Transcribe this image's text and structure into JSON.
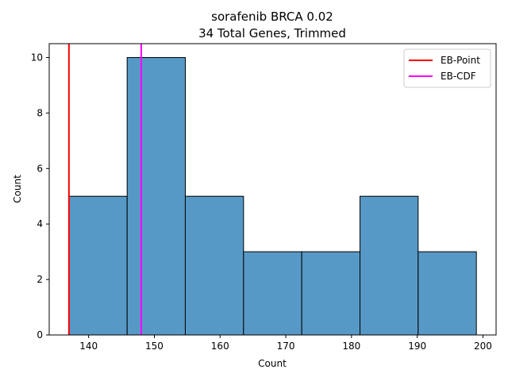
{
  "chart_data": {
    "type": "bar",
    "title": "sorafenib BRCA 0.02",
    "subtitle": "34 Total Genes, Trimmed",
    "xlabel": "Count",
    "ylabel": "Count",
    "xlim": [
      134,
      202
    ],
    "ylim": [
      0,
      10.5
    ],
    "xticks": [
      140,
      150,
      160,
      170,
      180,
      190,
      200
    ],
    "yticks": [
      0,
      2,
      4,
      6,
      8,
      10
    ],
    "bins": [
      {
        "x0": 137.0,
        "x1": 145.86,
        "count": 5
      },
      {
        "x0": 145.86,
        "x1": 154.71,
        "count": 10
      },
      {
        "x0": 154.71,
        "x1": 163.57,
        "count": 5
      },
      {
        "x0": 163.57,
        "x1": 172.43,
        "count": 3
      },
      {
        "x0": 172.43,
        "x1": 181.29,
        "count": 3
      },
      {
        "x0": 181.29,
        "x1": 190.14,
        "count": 5
      },
      {
        "x0": 190.14,
        "x1": 199.0,
        "count": 3
      }
    ],
    "bar_color": "#5799c6",
    "vlines": [
      {
        "name": "EB-Point",
        "x": 137.0,
        "color": "#ff0000"
      },
      {
        "name": "EB-CDF",
        "x": 148.0,
        "color": "#ff00ff"
      }
    ],
    "legend_position": "top-right",
    "grid": false
  }
}
